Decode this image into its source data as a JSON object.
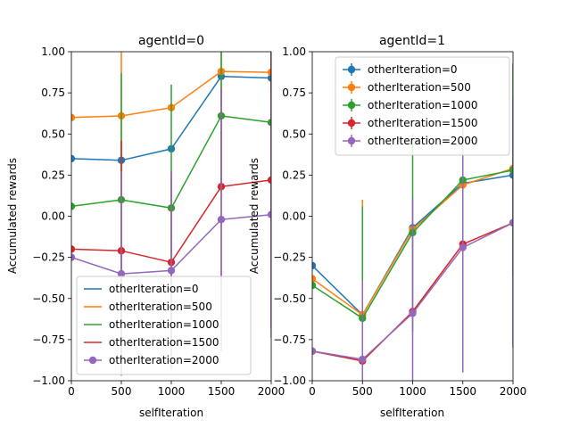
{
  "chart_data": [
    {
      "type": "line",
      "title": "agentId=0",
      "xlabel": "selfIteration",
      "ylabel": "Accumulated rewards",
      "xlim": [
        0,
        2000
      ],
      "ylim": [
        -1.0,
        1.0
      ],
      "xticks": [
        "0",
        "500",
        "1000",
        "1500",
        "2000"
      ],
      "yticks": [
        "−1.00",
        "−0.75",
        "−0.50",
        "−0.25",
        "0.00",
        "0.25",
        "0.50",
        "0.75",
        "1.00"
      ],
      "x": [
        0,
        500,
        1000,
        1500,
        2000
      ],
      "grid": false,
      "legend_position": "lower-right",
      "series": [
        {
          "name": "otherIteration=0",
          "color": "#1f77b4",
          "values": [
            0.35,
            0.34,
            0.41,
            0.85,
            0.84
          ],
          "err": [
            0.0,
            0.0,
            0.0,
            0.0,
            0.0
          ]
        },
        {
          "name": "otherIteration=500",
          "color": "#ff7f0e",
          "values": [
            0.6,
            0.61,
            0.66,
            0.88,
            0.875
          ],
          "err": [
            0.0,
            0.55,
            0.0,
            0.2,
            0.2
          ]
        },
        {
          "name": "otherIteration=1000",
          "color": "#2ca02c",
          "values": [
            0.06,
            0.1,
            0.05,
            0.61,
            0.57
          ],
          "err": [
            0.0,
            0.77,
            0.75,
            0.45,
            0.6
          ]
        },
        {
          "name": "otherIteration=1500",
          "color": "#d62728",
          "values": [
            -0.2,
            -0.21,
            -0.28,
            0.18,
            0.22
          ],
          "err": [
            0.0,
            0.67,
            0.55,
            0.6,
            0.9
          ]
        },
        {
          "name": "otherIteration=2000",
          "color": "#9467bd",
          "values": [
            -0.25,
            -0.35,
            -0.33,
            -0.02,
            0.01
          ],
          "err": [
            0.0,
            0.62,
            0.6,
            0.8,
            0.75
          ]
        }
      ]
    },
    {
      "type": "line",
      "title": "agentId=1",
      "xlabel": "selfIteration",
      "ylabel": "Accumulated rewards",
      "xlim": [
        0,
        2000
      ],
      "ylim": [
        -1.0,
        1.0
      ],
      "xticks": [
        "0",
        "500",
        "1000",
        "1500",
        "2000"
      ],
      "yticks": [
        "−1.00",
        "−0.75",
        "−0.50",
        "−0.25",
        "0.00",
        "0.25",
        "0.50",
        "0.75",
        "1.00"
      ],
      "x": [
        0,
        500,
        1000,
        1500,
        2000
      ],
      "grid": false,
      "legend_position": "upper-left",
      "series": [
        {
          "name": "otherIteration=0",
          "color": "#1f77b4",
          "values": [
            -0.3,
            -0.6,
            -0.07,
            0.2,
            0.25
          ],
          "err": [
            0.0,
            0.0,
            0.0,
            0.0,
            0.0
          ]
        },
        {
          "name": "otherIteration=500",
          "color": "#ff7f0e",
          "values": [
            -0.38,
            -0.6,
            -0.08,
            0.19,
            0.29
          ],
          "err": [
            0.0,
            0.7,
            0.0,
            0.0,
            0.0
          ]
        },
        {
          "name": "otherIteration=1000",
          "color": "#2ca02c",
          "values": [
            -0.42,
            -0.62,
            -0.1,
            0.22,
            0.28
          ],
          "err": [
            0.0,
            0.68,
            0.6,
            0.0,
            0.65
          ]
        },
        {
          "name": "otherIteration=1500",
          "color": "#d62728",
          "values": [
            -0.82,
            -0.88,
            -0.58,
            -0.17,
            -0.04
          ],
          "err": [
            0.0,
            0.0,
            0.0,
            0.0,
            0.0
          ]
        },
        {
          "name": "otherIteration=2000",
          "color": "#9467bd",
          "values": [
            -0.82,
            -0.87,
            -0.59,
            -0.19,
            -0.04
          ],
          "err": [
            0.0,
            0.48,
            0.7,
            0.76,
            0.76
          ]
        }
      ]
    }
  ]
}
